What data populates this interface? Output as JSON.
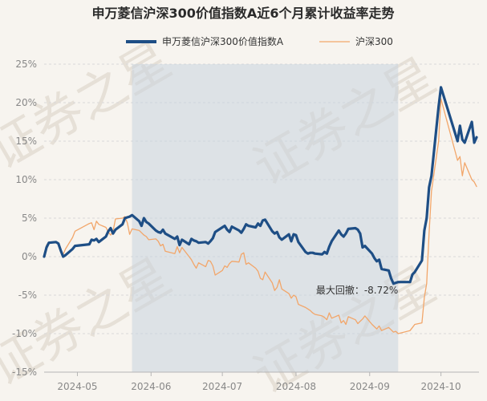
{
  "colors": {
    "background": "#f7f4ef",
    "fund_line": "#1e4e85",
    "index_line": "#f2a66a",
    "drawdown_fill": "#c9d3df",
    "grid": "#d9d9d9",
    "watermark": "#e6e0d7"
  },
  "watermark": "证券之星",
  "chart_data": {
    "type": "line",
    "title": "申万菱信沪深300价值指数A近6个月累计收益率走势",
    "xlabel": "",
    "ylabel": "",
    "x_range": [
      "2024-04-17",
      "2024-10-17"
    ],
    "ylim": [
      -15,
      25
    ],
    "yticks": [
      "25%",
      "20%",
      "15%",
      "10%",
      "5%",
      "0%",
      "-5%",
      "-10%",
      "-15%"
    ],
    "xticks": [
      {
        "date": "2024-05-01",
        "label": "2024-05"
      },
      {
        "date": "2024-06-01",
        "label": "2024-06"
      },
      {
        "date": "2024-07-01",
        "label": "2024-07"
      },
      {
        "date": "2024-08-01",
        "label": "2024-08"
      },
      {
        "date": "2024-09-01",
        "label": "2024-09"
      },
      {
        "date": "2024-10-01",
        "label": "2024-10"
      }
    ],
    "grid": true,
    "legend_position": "top-center",
    "series": [
      {
        "name": "申万菱信沪深300价值指数A",
        "points": [
          [
            "2024-04-17",
            0.0
          ],
          [
            "2024-04-18",
            1.2
          ],
          [
            "2024-04-19",
            1.8
          ],
          [
            "2024-04-22",
            1.9
          ],
          [
            "2024-04-23",
            1.7
          ],
          [
            "2024-04-24",
            0.8
          ],
          [
            "2024-04-25",
            0.0
          ],
          [
            "2024-04-26",
            0.2
          ],
          [
            "2024-04-29",
            1.0
          ],
          [
            "2024-04-30",
            1.4
          ],
          [
            "2024-05-06",
            1.6
          ],
          [
            "2024-05-07",
            2.2
          ],
          [
            "2024-05-08",
            2.1
          ],
          [
            "2024-05-09",
            2.3
          ],
          [
            "2024-05-10",
            1.9
          ],
          [
            "2024-05-13",
            2.6
          ],
          [
            "2024-05-14",
            3.3
          ],
          [
            "2024-05-15",
            3.7
          ],
          [
            "2024-05-16",
            3.0
          ],
          [
            "2024-05-17",
            3.5
          ],
          [
            "2024-05-20",
            4.2
          ],
          [
            "2024-05-21",
            5.0
          ],
          [
            "2024-05-22",
            5.1
          ],
          [
            "2024-05-23",
            5.2
          ],
          [
            "2024-05-24",
            5.4
          ],
          [
            "2024-05-27",
            4.6
          ],
          [
            "2024-05-28",
            4.0
          ],
          [
            "2024-05-29",
            5.0
          ],
          [
            "2024-05-30",
            4.5
          ],
          [
            "2024-05-31",
            4.3
          ],
          [
            "2024-06-03",
            3.4
          ],
          [
            "2024-06-04",
            3.2
          ],
          [
            "2024-06-05",
            3.1
          ],
          [
            "2024-06-06",
            3.5
          ],
          [
            "2024-06-07",
            3.0
          ],
          [
            "2024-06-11",
            2.3
          ],
          [
            "2024-06-12",
            2.6
          ],
          [
            "2024-06-13",
            1.5
          ],
          [
            "2024-06-14",
            2.2
          ],
          [
            "2024-06-17",
            1.6
          ],
          [
            "2024-06-18",
            2.3
          ],
          [
            "2024-06-19",
            2.1
          ],
          [
            "2024-06-20",
            2.0
          ],
          [
            "2024-06-21",
            1.8
          ],
          [
            "2024-06-24",
            1.9
          ],
          [
            "2024-06-25",
            1.7
          ],
          [
            "2024-06-26",
            2.0
          ],
          [
            "2024-06-27",
            2.4
          ],
          [
            "2024-06-28",
            3.2
          ],
          [
            "2024-07-01",
            3.8
          ],
          [
            "2024-07-02",
            4.0
          ],
          [
            "2024-07-03",
            3.5
          ],
          [
            "2024-07-04",
            3.2
          ],
          [
            "2024-07-05",
            3.9
          ],
          [
            "2024-07-08",
            3.4
          ],
          [
            "2024-07-09",
            3.1
          ],
          [
            "2024-07-10",
            3.6
          ],
          [
            "2024-07-11",
            4.2
          ],
          [
            "2024-07-12",
            4.0
          ],
          [
            "2024-07-15",
            3.8
          ],
          [
            "2024-07-16",
            4.3
          ],
          [
            "2024-07-17",
            4.0
          ],
          [
            "2024-07-18",
            4.7
          ],
          [
            "2024-07-19",
            4.8
          ],
          [
            "2024-07-22",
            3.3
          ],
          [
            "2024-07-23",
            3.0
          ],
          [
            "2024-07-24",
            3.2
          ],
          [
            "2024-07-25",
            2.5
          ],
          [
            "2024-07-26",
            2.2
          ],
          [
            "2024-07-29",
            2.9
          ],
          [
            "2024-07-30",
            2.0
          ],
          [
            "2024-07-31",
            2.9
          ],
          [
            "2024-08-01",
            2.8
          ],
          [
            "2024-08-02",
            1.9
          ],
          [
            "2024-08-05",
            0.6
          ],
          [
            "2024-08-06",
            0.4
          ],
          [
            "2024-08-07",
            0.5
          ],
          [
            "2024-08-08",
            0.5
          ],
          [
            "2024-08-09",
            0.4
          ],
          [
            "2024-08-12",
            0.3
          ],
          [
            "2024-08-13",
            0.6
          ],
          [
            "2024-08-14",
            0.4
          ],
          [
            "2024-08-15",
            1.3
          ],
          [
            "2024-08-16",
            2.0
          ],
          [
            "2024-08-19",
            3.4
          ],
          [
            "2024-08-20",
            2.9
          ],
          [
            "2024-08-21",
            2.6
          ],
          [
            "2024-08-22",
            3.0
          ],
          [
            "2024-08-23",
            3.6
          ],
          [
            "2024-08-26",
            3.7
          ],
          [
            "2024-08-27",
            3.5
          ],
          [
            "2024-08-28",
            3.0
          ],
          [
            "2024-08-29",
            1.2
          ],
          [
            "2024-08-30",
            1.4
          ],
          [
            "2024-09-02",
            0.4
          ],
          [
            "2024-09-03",
            -0.2
          ],
          [
            "2024-09-04",
            -0.6
          ],
          [
            "2024-09-05",
            -0.4
          ],
          [
            "2024-09-06",
            -1.6
          ],
          [
            "2024-09-09",
            -1.8
          ],
          [
            "2024-09-10",
            -2.8
          ],
          [
            "2024-09-11",
            -3.5
          ],
          [
            "2024-09-12",
            -3.4
          ],
          [
            "2024-09-13",
            -3.3
          ],
          [
            "2024-09-18",
            -3.3
          ],
          [
            "2024-09-19",
            -2.3
          ],
          [
            "2024-09-20",
            -2.0
          ],
          [
            "2024-09-23",
            -0.5
          ],
          [
            "2024-09-24",
            3.4
          ],
          [
            "2024-09-25",
            5.0
          ],
          [
            "2024-09-26",
            9.0
          ],
          [
            "2024-09-27",
            10.5
          ],
          [
            "2024-09-30",
            19.5
          ],
          [
            "2024-10-01",
            22.0
          ],
          [
            "2024-10-08",
            15.0
          ],
          [
            "2024-10-09",
            17.0
          ],
          [
            "2024-10-10",
            15.2
          ],
          [
            "2024-10-11",
            14.8
          ],
          [
            "2024-10-14",
            17.5
          ],
          [
            "2024-10-15",
            14.8
          ],
          [
            "2024-10-16",
            15.5
          ]
        ]
      },
      {
        "name": "沪深300",
        "points": [
          [
            "2024-04-17",
            0.0
          ],
          [
            "2024-04-18",
            1.5
          ],
          [
            "2024-04-19",
            1.9
          ],
          [
            "2024-04-22",
            1.8
          ],
          [
            "2024-04-23",
            1.6
          ],
          [
            "2024-04-24",
            0.9
          ],
          [
            "2024-04-25",
            0.3
          ],
          [
            "2024-04-26",
            1.0
          ],
          [
            "2024-04-29",
            2.5
          ],
          [
            "2024-04-30",
            3.3
          ],
          [
            "2024-05-06",
            4.3
          ],
          [
            "2024-05-07",
            4.4
          ],
          [
            "2024-05-08",
            3.5
          ],
          [
            "2024-05-09",
            4.6
          ],
          [
            "2024-05-10",
            4.2
          ],
          [
            "2024-05-13",
            3.8
          ],
          [
            "2024-05-14",
            3.2
          ],
          [
            "2024-05-15",
            2.8
          ],
          [
            "2024-05-16",
            3.3
          ],
          [
            "2024-05-17",
            4.9
          ],
          [
            "2024-05-20",
            5.0
          ],
          [
            "2024-05-21",
            5.2
          ],
          [
            "2024-05-22",
            4.4
          ],
          [
            "2024-05-23",
            2.9
          ],
          [
            "2024-05-24",
            3.6
          ],
          [
            "2024-05-27",
            3.4
          ],
          [
            "2024-05-28",
            3.1
          ],
          [
            "2024-05-29",
            2.8
          ],
          [
            "2024-05-30",
            2.6
          ],
          [
            "2024-05-31",
            2.2
          ],
          [
            "2024-06-03",
            2.3
          ],
          [
            "2024-06-04",
            2.0
          ],
          [
            "2024-06-05",
            1.4
          ],
          [
            "2024-06-06",
            1.6
          ],
          [
            "2024-06-07",
            0.7
          ],
          [
            "2024-06-11",
            0.4
          ],
          [
            "2024-06-12",
            1.3
          ],
          [
            "2024-06-13",
            0.5
          ],
          [
            "2024-06-14",
            1.2
          ],
          [
            "2024-06-17",
            0.0
          ],
          [
            "2024-06-18",
            -0.4
          ],
          [
            "2024-06-19",
            -1.0
          ],
          [
            "2024-06-20",
            -1.5
          ],
          [
            "2024-06-21",
            -0.8
          ],
          [
            "2024-06-24",
            -1.3
          ],
          [
            "2024-06-25",
            -0.5
          ],
          [
            "2024-06-26",
            -0.6
          ],
          [
            "2024-06-27",
            -1.2
          ],
          [
            "2024-06-28",
            -2.4
          ],
          [
            "2024-07-01",
            -1.8
          ],
          [
            "2024-07-02",
            -1.2
          ],
          [
            "2024-07-03",
            -1.4
          ],
          [
            "2024-07-04",
            -0.9
          ],
          [
            "2024-07-05",
            -0.6
          ],
          [
            "2024-07-08",
            -0.7
          ],
          [
            "2024-07-09",
            0.3
          ],
          [
            "2024-07-10",
            0.5
          ],
          [
            "2024-07-11",
            -1.0
          ],
          [
            "2024-07-12",
            -0.8
          ],
          [
            "2024-07-15",
            -1.5
          ],
          [
            "2024-07-16",
            -1.9
          ],
          [
            "2024-07-17",
            -2.8
          ],
          [
            "2024-07-18",
            -3.0
          ],
          [
            "2024-07-19",
            -2.0
          ],
          [
            "2024-07-22",
            -3.4
          ],
          [
            "2024-07-23",
            -4.4
          ],
          [
            "2024-07-24",
            -4.0
          ],
          [
            "2024-07-25",
            -3.0
          ],
          [
            "2024-07-26",
            -4.2
          ],
          [
            "2024-07-29",
            -4.8
          ],
          [
            "2024-07-30",
            -5.4
          ],
          [
            "2024-07-31",
            -5.0
          ],
          [
            "2024-08-01",
            -5.2
          ],
          [
            "2024-08-02",
            -6.2
          ],
          [
            "2024-08-05",
            -6.6
          ],
          [
            "2024-08-06",
            -6.8
          ],
          [
            "2024-08-07",
            -7.0
          ],
          [
            "2024-08-08",
            -7.3
          ],
          [
            "2024-08-09",
            -7.5
          ],
          [
            "2024-08-12",
            -7.7
          ],
          [
            "2024-08-13",
            -7.9
          ],
          [
            "2024-08-14",
            -8.2
          ],
          [
            "2024-08-15",
            -7.3
          ],
          [
            "2024-08-16",
            -8.0
          ],
          [
            "2024-08-19",
            -7.6
          ],
          [
            "2024-08-20",
            -8.6
          ],
          [
            "2024-08-21",
            -8.3
          ],
          [
            "2024-08-22",
            -8.8
          ],
          [
            "2024-08-23",
            -7.8
          ],
          [
            "2024-08-26",
            -8.2
          ],
          [
            "2024-08-27",
            -8.7
          ],
          [
            "2024-08-28",
            -8.4
          ],
          [
            "2024-08-29",
            -8.1
          ],
          [
            "2024-08-30",
            -7.7
          ],
          [
            "2024-09-02",
            -8.8
          ],
          [
            "2024-09-03",
            -9.1
          ],
          [
            "2024-09-04",
            -9.4
          ],
          [
            "2024-09-05",
            -9.0
          ],
          [
            "2024-09-06",
            -9.6
          ],
          [
            "2024-09-09",
            -9.2
          ],
          [
            "2024-09-10",
            -9.5
          ],
          [
            "2024-09-11",
            -9.8
          ],
          [
            "2024-09-12",
            -9.7
          ],
          [
            "2024-09-13",
            -10.0
          ],
          [
            "2024-09-18",
            -9.6
          ],
          [
            "2024-09-19",
            -9.2
          ],
          [
            "2024-09-20",
            -8.8
          ],
          [
            "2024-09-23",
            -8.6
          ],
          [
            "2024-09-24",
            -5.3
          ],
          [
            "2024-09-25",
            -3.5
          ],
          [
            "2024-09-26",
            3.0
          ],
          [
            "2024-09-27",
            8.5
          ],
          [
            "2024-09-30",
            15.0
          ],
          [
            "2024-10-01",
            20.5
          ],
          [
            "2024-10-08",
            12.5
          ],
          [
            "2024-10-09",
            13.0
          ],
          [
            "2024-10-10",
            10.5
          ],
          [
            "2024-10-11",
            12.2
          ],
          [
            "2024-10-14",
            10.0
          ],
          [
            "2024-10-15",
            9.7
          ],
          [
            "2024-10-16",
            9.1
          ]
        ]
      }
    ],
    "drawdown": {
      "start": "2024-05-24",
      "end": "2024-09-13",
      "label": "最大回撤：-8.72%"
    }
  }
}
